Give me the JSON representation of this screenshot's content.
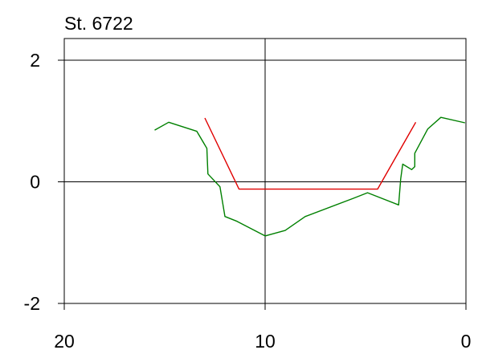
{
  "chart_data": {
    "type": "line",
    "title": "St. 6722",
    "xlabel": "",
    "ylabel": "",
    "xlim": [
      20,
      0
    ],
    "ylim": [
      -2,
      2
    ],
    "x_ticks": [
      {
        "value": 20,
        "label": "20"
      },
      {
        "value": 10,
        "label": "10"
      },
      {
        "value": 0,
        "label": "0"
      }
    ],
    "y_ticks": [
      {
        "value": 2,
        "label": "2"
      },
      {
        "value": 0,
        "label": "0"
      },
      {
        "value": -2,
        "label": "-2"
      }
    ],
    "grid": true,
    "series": [
      {
        "color": "#008000",
        "points": [
          [
            15.5,
            0.85
          ],
          [
            14.8,
            0.98
          ],
          [
            13.4,
            0.83
          ],
          [
            12.9,
            0.55
          ],
          [
            12.85,
            0.13
          ],
          [
            12.25,
            -0.08
          ],
          [
            12.0,
            -0.57
          ],
          [
            11.4,
            -0.65
          ],
          [
            10.0,
            -0.89
          ],
          [
            9.0,
            -0.8
          ],
          [
            8.0,
            -0.57
          ],
          [
            5.6,
            -0.27
          ],
          [
            4.9,
            -0.18
          ],
          [
            3.35,
            -0.38
          ],
          [
            3.25,
            0.05
          ],
          [
            3.15,
            0.29
          ],
          [
            2.7,
            0.2
          ],
          [
            2.55,
            0.25
          ],
          [
            2.55,
            0.47
          ],
          [
            1.9,
            0.87
          ],
          [
            1.25,
            1.06
          ],
          [
            0.05,
            0.97
          ]
        ]
      },
      {
        "color": "#e00000",
        "points": [
          [
            13.0,
            1.05
          ],
          [
            11.3,
            -0.12
          ],
          [
            4.4,
            -0.12
          ],
          [
            2.5,
            0.98
          ]
        ]
      }
    ]
  }
}
